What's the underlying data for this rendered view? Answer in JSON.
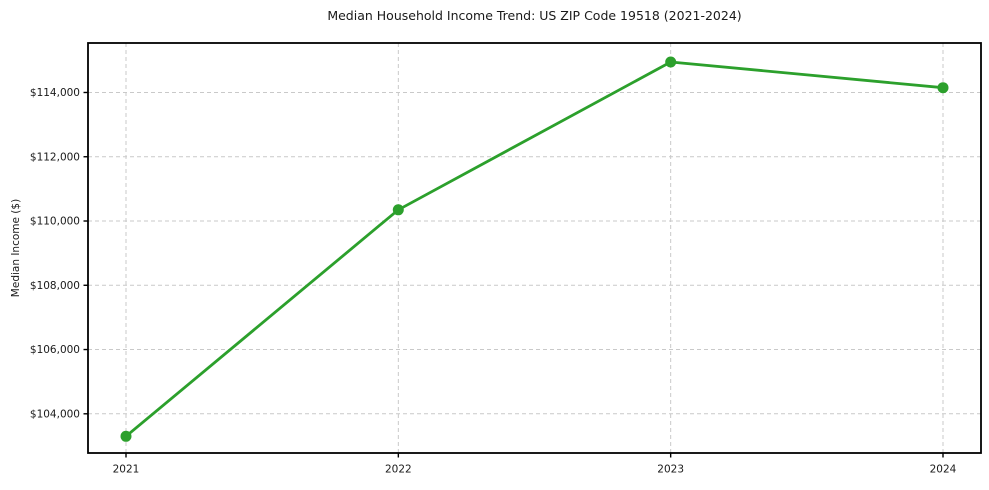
{
  "page": {
    "background": "#ffffff"
  },
  "chart_data": {
    "type": "line",
    "title": "Median Household Income Trend: US ZIP Code 19518 (2021-2024)",
    "xlabel": "",
    "ylabel": "Median Income ($)",
    "categories": [
      "2021",
      "2022",
      "2023",
      "2024"
    ],
    "series": [
      {
        "name": "median-household-income",
        "values": [
          103300,
          110350,
          114950,
          114150
        ],
        "color": "#2ca02c",
        "marker": "circle"
      }
    ],
    "yticks": [
      {
        "value": 104000,
        "label": "$104,000"
      },
      {
        "value": 106000,
        "label": "$106,000"
      },
      {
        "value": 108000,
        "label": "$108,000"
      },
      {
        "value": 110000,
        "label": "$110,000"
      },
      {
        "value": 112000,
        "label": "$112,000"
      },
      {
        "value": 114000,
        "label": "$114,000"
      }
    ],
    "ylim": [
      102780,
      115540
    ],
    "grid": true,
    "grid_style": "dashed",
    "grid_color": "#c9c9c9",
    "legend_position": "none",
    "axis_color": "#000000",
    "text_color": "#1a1a1a"
  }
}
